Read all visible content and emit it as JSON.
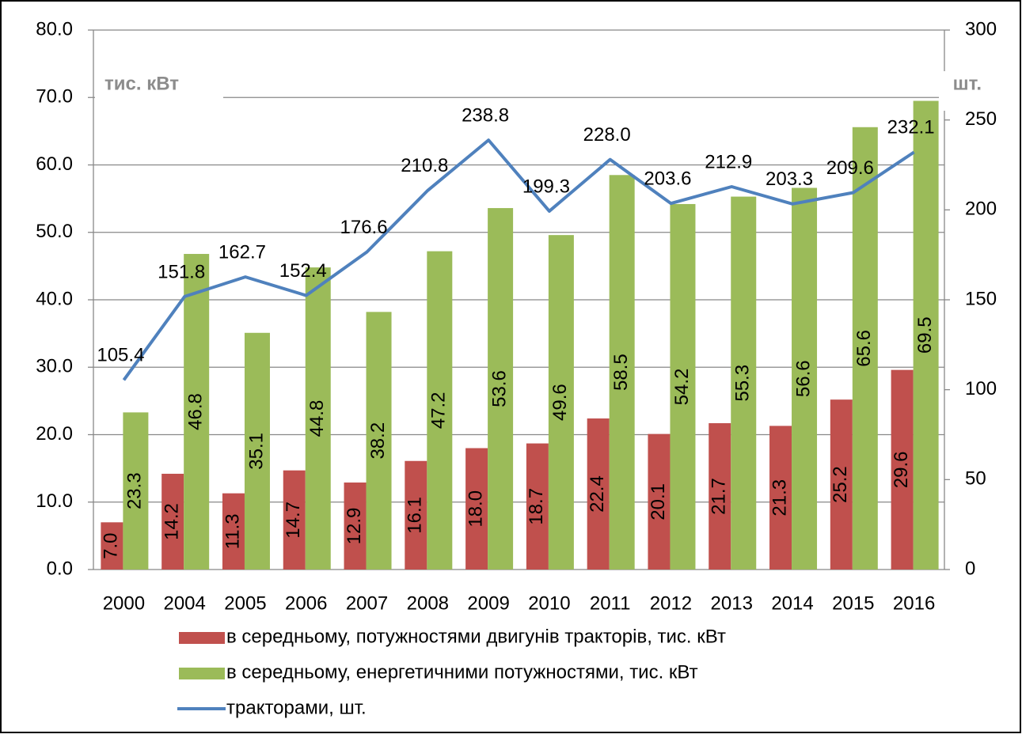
{
  "chart_data": {
    "type": "bar",
    "categories": [
      "2000",
      "2004",
      "2005",
      "2006",
      "2007",
      "2008",
      "2009",
      "2010",
      "2011",
      "2012",
      "2013",
      "2014",
      "2015",
      "2016"
    ],
    "series": [
      {
        "name": "в середньому, потужностями двигунів тракторів, тис. кВт",
        "color": "#c0504d",
        "values": [
          7.0,
          14.2,
          11.3,
          14.7,
          12.9,
          16.1,
          18.0,
          18.7,
          22.4,
          20.1,
          21.7,
          21.3,
          25.2,
          29.6
        ],
        "value_labels": [
          "7.0",
          "14.2",
          "11.3",
          "14.7",
          "12.9",
          "16.1",
          "18.0",
          "18.7",
          "22.4",
          "20.1",
          "21.7",
          "21.3",
          "25.2",
          "29.6"
        ]
      },
      {
        "name": "в середньому, енергетичними потужностями, тис. кВт",
        "color": "#9bbb59",
        "values": [
          23.3,
          46.8,
          35.1,
          44.8,
          38.2,
          47.2,
          53.6,
          49.6,
          58.5,
          54.2,
          55.3,
          56.6,
          65.6,
          69.5
        ],
        "value_labels": [
          "23.3",
          "46.8",
          "35.1",
          "44.8",
          "38.2",
          "47.2",
          "53.6",
          "49.6",
          "58.5",
          "54.2",
          "55.3",
          "56.6",
          "65.6",
          "69.5"
        ]
      },
      {
        "name": "тракторами, шт.",
        "color": "#4f81bd",
        "type": "line",
        "axis": "y2",
        "values": [
          105.4,
          151.8,
          162.7,
          152.4,
          176.6,
          210.8,
          238.8,
          199.3,
          228.0,
          203.6,
          212.9,
          203.3,
          209.6,
          232.1
        ],
        "value_labels": [
          "105.4",
          "151.8",
          "162.7",
          "152.4",
          "176.6",
          "210.8",
          "238.8",
          "199.3",
          "228.0",
          "203.6",
          "212.9",
          "203.3",
          "209.6",
          "232.1"
        ]
      }
    ],
    "y_label": "тис. кВт",
    "y2_label": "шт.",
    "ylim": [
      0,
      80
    ],
    "yticks": [
      {
        "value": 0,
        "label": "0.0"
      },
      {
        "value": 10,
        "label": "10.0"
      },
      {
        "value": 20,
        "label": "20.0"
      },
      {
        "value": 30,
        "label": "30.0"
      },
      {
        "value": 40,
        "label": "40.0"
      },
      {
        "value": 50,
        "label": "50.0"
      },
      {
        "value": 60,
        "label": "60.0"
      },
      {
        "value": 70,
        "label": "70.0"
      },
      {
        "value": 80,
        "label": "80.0"
      }
    ],
    "y2lim": [
      0,
      300
    ],
    "y2ticks": [
      0,
      50,
      100,
      150,
      200,
      250,
      300
    ],
    "grid": true
  }
}
